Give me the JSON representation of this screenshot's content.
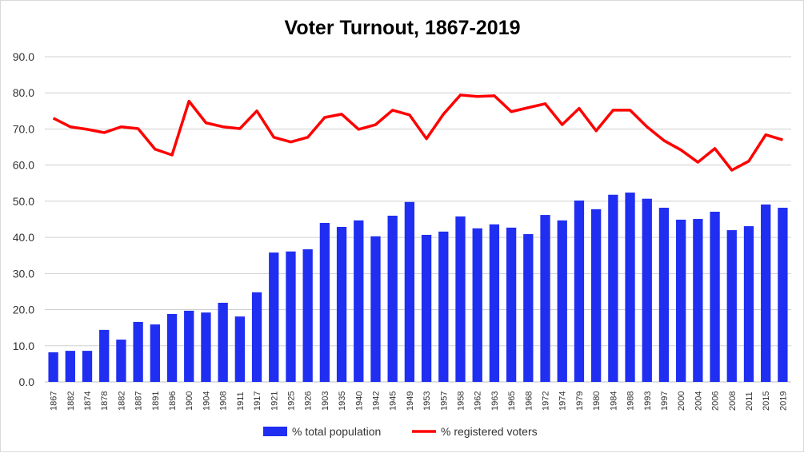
{
  "chart_data": {
    "type": "bar+line",
    "title": "Voter Turnout, 1867-2019",
    "xlabel": "",
    "ylabel": "",
    "ylim": [
      0,
      90
    ],
    "yticks": [
      "0.0",
      "10.0",
      "20.0",
      "30.0",
      "40.0",
      "50.0",
      "60.0",
      "70.0",
      "80.0",
      "90.0"
    ],
    "grid": true,
    "legend_position": "bottom",
    "categories": [
      "1867",
      "1882",
      "1874",
      "1878",
      "1882",
      "1887",
      "1891",
      "1896",
      "1900",
      "1904",
      "1908",
      "1911",
      "1917",
      "1921",
      "1925",
      "1926",
      "1903",
      "1935",
      "1940",
      "1942",
      "1945",
      "1949",
      "1953",
      "1957",
      "1958",
      "1962",
      "1963",
      "1965",
      "1968",
      "1972",
      "1974",
      "1979",
      "1980",
      "1984",
      "1988",
      "1993",
      "1997",
      "2000",
      "2004",
      "2006",
      "2008",
      "2011",
      "2015",
      "2019"
    ],
    "series": [
      {
        "name": "% total population",
        "type": "bar",
        "color": "#1f2ef0",
        "values": [
          8.2,
          8.6,
          8.6,
          14.4,
          11.7,
          16.6,
          15.9,
          18.8,
          19.7,
          19.2,
          21.9,
          18.1,
          24.8,
          35.8,
          36.1,
          36.7,
          44.0,
          42.9,
          44.7,
          40.3,
          46.0,
          49.8,
          40.7,
          41.6,
          45.8,
          42.5,
          43.6,
          42.7,
          40.9,
          46.2,
          44.7,
          50.2,
          47.8,
          51.8,
          52.4,
          50.7,
          48.2,
          44.9,
          45.1,
          47.1,
          42.0,
          43.1,
          49.1,
          48.2
        ]
      },
      {
        "name": "% registered voters",
        "type": "line",
        "color": "#ff0000",
        "values": [
          73.0,
          70.6,
          69.9,
          69.0,
          70.6,
          70.1,
          64.4,
          62.8,
          77.7,
          71.7,
          70.6,
          70.1,
          75.0,
          67.7,
          66.4,
          67.7,
          73.2,
          74.1,
          69.9,
          71.2,
          75.2,
          73.9,
          67.3,
          74.1,
          79.4,
          79.0,
          79.2,
          74.8,
          75.9,
          77.0,
          71.2,
          75.7,
          69.5,
          75.2,
          75.2,
          70.6,
          66.8,
          64.2,
          60.8,
          64.6,
          58.6,
          61.1,
          68.4,
          67.0
        ]
      }
    ]
  }
}
